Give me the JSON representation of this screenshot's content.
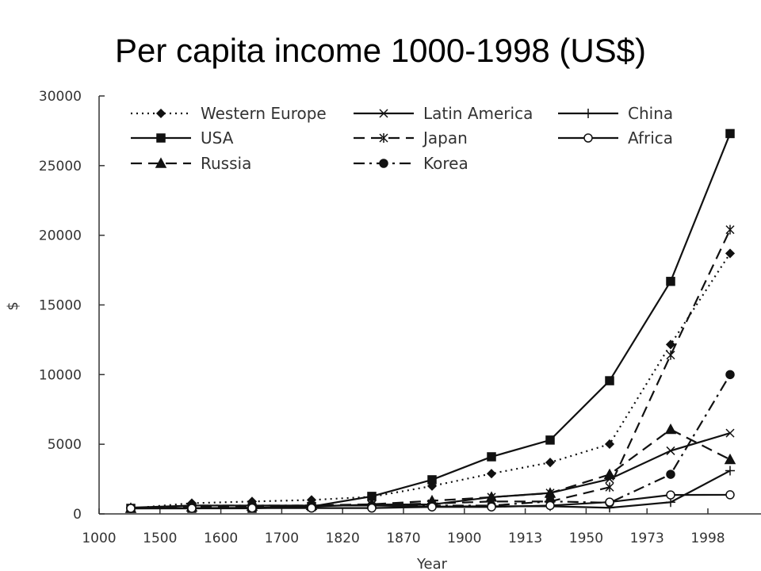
{
  "title": "Per capita income 1000-1998 (US$)",
  "chart_data": {
    "type": "line",
    "title": "Per capita income 1000-1998 (US$)",
    "xlabel": "Year",
    "ylabel": "$",
    "categories": [
      "1000",
      "1500",
      "1600",
      "1700",
      "1820",
      "1870",
      "1900",
      "1913",
      "1950",
      "1973",
      "1998"
    ],
    "ylim": [
      0,
      30000
    ],
    "yticks": [
      0,
      5000,
      10000,
      15000,
      20000,
      25000,
      30000
    ],
    "grid": false,
    "legend_position": "top-left",
    "series": [
      {
        "name": "Western Europe",
        "style": "dotted",
        "marker": "diamond",
        "values": [
          400,
          770,
          890,
          1000,
          1230,
          2000,
          2890,
          3690,
          5010,
          12160,
          18700
        ]
      },
      {
        "name": "USA",
        "style": "solid",
        "marker": "square",
        "values": [
          400,
          400,
          400,
          530,
          1260,
          2450,
          4100,
          5300,
          9560,
          16690,
          27300
        ]
      },
      {
        "name": "Russia",
        "style": "dashed",
        "marker": "triangle",
        "values": [
          400,
          500,
          550,
          610,
          690,
          940,
          1200,
          1490,
          2830,
          6060,
          3900
        ]
      },
      {
        "name": "Latin America",
        "style": "solid",
        "marker": "x",
        "values": [
          400,
          420,
          440,
          530,
          670,
          680,
          1200,
          1500,
          2500,
          4530,
          5800
        ]
      },
      {
        "name": "Japan",
        "style": "dashed",
        "marker": "asterisk",
        "values": [
          400,
          500,
          520,
          570,
          670,
          740,
          890,
          890,
          1920,
          11400,
          20400
        ]
      },
      {
        "name": "Korea",
        "style": "dashdot",
        "marker": "circle-filled",
        "values": [
          400,
          600,
          600,
          600,
          600,
          600,
          600,
          900,
          800,
          2840,
          10000
        ]
      },
      {
        "name": "China",
        "style": "solid",
        "marker": "plus",
        "values": [
          450,
          600,
          600,
          600,
          600,
          530,
          550,
          550,
          440,
          840,
          3100
        ]
      },
      {
        "name": "Africa",
        "style": "solid",
        "marker": "circle-open",
        "values": [
          400,
          400,
          420,
          420,
          420,
          500,
          500,
          600,
          850,
          1360,
          1370
        ]
      }
    ]
  }
}
